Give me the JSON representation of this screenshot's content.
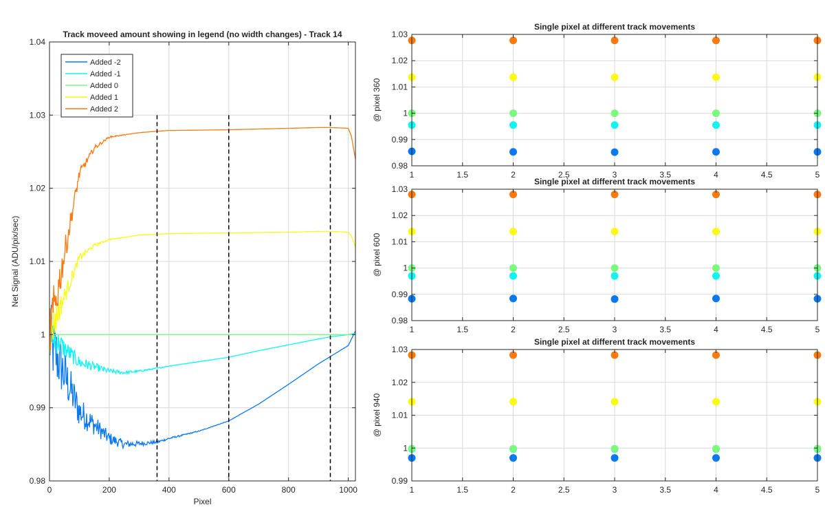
{
  "colors": {
    "added_-2": "#0a78f0",
    "added_-1": "#11f3f3",
    "added_0": "#7bf87e",
    "added_1": "#fafa14",
    "added_2": "#fa7a0f",
    "grid": "#d9d9d9",
    "axis": "#262626",
    "vline": "#000000"
  },
  "chart_data": [
    {
      "type": "line",
      "title": "Track moveed amount showing in legend (no width changes) - Track 14",
      "xlabel": "Pixel",
      "ylabel": "Net Signal (ADU/pix/sec)",
      "xlim": [
        0,
        1024
      ],
      "ylim": [
        0.98,
        1.04
      ],
      "xticks": [
        "0",
        "200",
        "400",
        "600",
        "800",
        "1000"
      ],
      "yticks": [
        "0.98",
        "0.99",
        "1",
        "1.01",
        "1.02",
        "1.03",
        "1.04"
      ],
      "grid": true,
      "legend_position": "top-left",
      "vertical_markers": [
        360,
        600,
        940
      ],
      "vertical_marker_range": [
        0.98,
        1.03
      ],
      "series": [
        {
          "name": "Added -2",
          "color_key": "added_-2",
          "start": 0.994,
          "plateau": 0.9852,
          "end": 1.0005,
          "noise": 0.0045,
          "tau": 60,
          "x": [
            0,
            100,
            200,
            250,
            300,
            360,
            400,
            500,
            600,
            700,
            800,
            900,
            940,
            1000,
            1024
          ],
          "y": [
            0.9995,
            0.9895,
            0.9858,
            0.985,
            0.9851,
            0.9853,
            0.9858,
            0.9868,
            0.9882,
            0.9905,
            0.9932,
            0.996,
            0.997,
            0.9985,
            1.0005
          ]
        },
        {
          "name": "Added -1",
          "color_key": "added_-1",
          "start": 1.0,
          "plateau": 0.9948,
          "end": 1.0002,
          "noise": 0.0018,
          "tau": 60,
          "x": [
            0,
            100,
            200,
            250,
            300,
            360,
            400,
            500,
            600,
            700,
            800,
            900,
            940,
            1000,
            1024
          ],
          "y": [
            1.0,
            0.9962,
            0.995,
            0.9948,
            0.995,
            0.9954,
            0.9957,
            0.9963,
            0.9969,
            0.9978,
            0.9986,
            0.9994,
            0.9997,
            1.0,
            1.0002
          ]
        },
        {
          "name": "Added 0",
          "color_key": "added_0",
          "x": [
            0,
            1024
          ],
          "y": [
            1.0,
            1.0
          ]
        },
        {
          "name": "Added 1",
          "color_key": "added_1",
          "x": [
            0,
            100,
            150,
            200,
            300,
            360,
            400,
            600,
            800,
            900,
            940,
            1000,
            1010,
            1024
          ],
          "y": [
            1.0,
            1.0105,
            1.0122,
            1.013,
            1.0136,
            1.0137,
            1.0138,
            1.0139,
            1.014,
            1.0141,
            1.0141,
            1.014,
            1.0135,
            1.012
          ]
        },
        {
          "name": "Added 2",
          "color_key": "added_2",
          "x": [
            0,
            100,
            150,
            200,
            300,
            360,
            400,
            600,
            800,
            900,
            940,
            1000,
            1010,
            1024
          ],
          "y": [
            1.0,
            1.022,
            1.0255,
            1.027,
            1.0276,
            1.0278,
            1.0279,
            1.028,
            1.0282,
            1.0283,
            1.0283,
            1.0282,
            1.0272,
            1.024
          ]
        }
      ]
    },
    {
      "type": "scatter",
      "title": "Single pixel at different track movements",
      "ylabel": "@ pixel 360",
      "xlim": [
        1,
        5
      ],
      "ylim": [
        0.98,
        1.03
      ],
      "xticks": [
        "1",
        "1.5",
        "2",
        "2.5",
        "3",
        "3.5",
        "4",
        "4.5",
        "5"
      ],
      "yticks": [
        "0.98",
        "0.99",
        "1",
        "1.01",
        "1.02",
        "1.03"
      ],
      "grid": true,
      "x": [
        1,
        2,
        3,
        4,
        5
      ],
      "series": [
        {
          "name": "Added -2",
          "color_key": "added_-2",
          "values": [
            0.9855,
            0.9853,
            0.9852,
            0.9853,
            0.9853
          ]
        },
        {
          "name": "Added -1",
          "color_key": "added_-1",
          "values": [
            0.9955,
            0.9955,
            0.9955,
            0.9955,
            0.9955
          ]
        },
        {
          "name": "Added 0",
          "color_key": "added_0",
          "values": [
            1.0,
            1.0,
            1.0,
            1.0,
            1.0
          ]
        },
        {
          "name": "Added 1",
          "color_key": "added_1",
          "values": [
            1.0137,
            1.0137,
            1.0137,
            1.0137,
            1.0137
          ]
        },
        {
          "name": "Added 2",
          "color_key": "added_2",
          "values": [
            1.0277,
            1.0277,
            1.0277,
            1.0277,
            1.0277
          ]
        }
      ]
    },
    {
      "type": "scatter",
      "title": "Single pixel at different track movements",
      "ylabel": "@ pixel 600",
      "xlim": [
        1,
        5
      ],
      "ylim": [
        0.98,
        1.03
      ],
      "xticks": [
        "1",
        "1.5",
        "2",
        "2.5",
        "3",
        "3.5",
        "4",
        "4.5",
        "5"
      ],
      "yticks": [
        "0.98",
        "0.99",
        "1",
        "1.01",
        "1.02",
        "1.03"
      ],
      "grid": true,
      "x": [
        1,
        2,
        3,
        4,
        5
      ],
      "series": [
        {
          "name": "Added -2",
          "color_key": "added_-2",
          "values": [
            0.9883,
            0.9884,
            0.9882,
            0.9884,
            0.9883
          ]
        },
        {
          "name": "Added -1",
          "color_key": "added_-1",
          "values": [
            0.997,
            0.997,
            0.997,
            0.997,
            0.997
          ]
        },
        {
          "name": "Added 0",
          "color_key": "added_0",
          "values": [
            1.0,
            1.0,
            1.0,
            1.0,
            1.0
          ]
        },
        {
          "name": "Added 1",
          "color_key": "added_1",
          "values": [
            1.0139,
            1.0139,
            1.0139,
            1.0139,
            1.0139
          ]
        },
        {
          "name": "Added 2",
          "color_key": "added_2",
          "values": [
            1.028,
            1.028,
            1.028,
            1.028,
            1.028
          ]
        }
      ]
    },
    {
      "type": "scatter",
      "title": "Single pixel at different track movements",
      "ylabel": "@ pixel 940",
      "xlim": [
        1,
        5
      ],
      "ylim": [
        0.99,
        1.03
      ],
      "xticks": [
        "1",
        "1.5",
        "2",
        "2.5",
        "3",
        "3.5",
        "4",
        "4.5",
        "5"
      ],
      "yticks": [
        "0.99",
        "1",
        "1.01",
        "1.02",
        "1.03"
      ],
      "grid": true,
      "x": [
        1,
        2,
        3,
        4,
        5
      ],
      "series": [
        {
          "name": "Added -2",
          "color_key": "added_-2",
          "values": [
            0.997,
            0.997,
            0.997,
            0.997,
            0.997
          ]
        },
        {
          "name": "Added -1",
          "color_key": "added_-1",
          "values": [
            0.9997,
            0.9997,
            0.9997,
            0.9997,
            0.9997
          ]
        },
        {
          "name": "Added 0",
          "color_key": "added_0",
          "values": [
            0.9998,
            0.9998,
            0.9998,
            0.9998,
            0.9998
          ]
        },
        {
          "name": "Added 1",
          "color_key": "added_1",
          "values": [
            1.0141,
            1.0141,
            1.0141,
            1.0141,
            1.0141
          ]
        },
        {
          "name": "Added 2",
          "color_key": "added_2",
          "values": [
            1.0283,
            1.0283,
            1.0283,
            1.0283,
            1.0283
          ]
        }
      ]
    }
  ]
}
